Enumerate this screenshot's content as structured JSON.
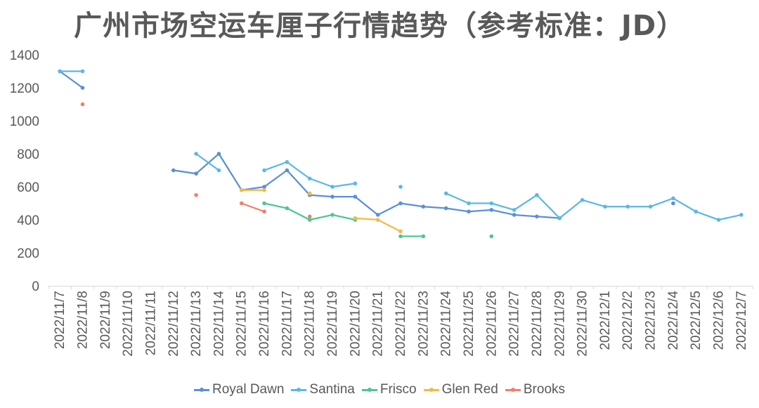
{
  "chart_data": {
    "type": "line",
    "title": "广州市场空运车厘子行情趋势（参考标准：JD）",
    "xlabel": "",
    "ylabel": "",
    "ylim": [
      0,
      1400
    ],
    "yticks": [
      0,
      200,
      400,
      600,
      800,
      1000,
      1200,
      1400
    ],
    "grid": false,
    "legend_position": "bottom",
    "categories": [
      "2022/11/7",
      "2022/11/8",
      "2022/11/9",
      "2022/11/10",
      "2022/11/11",
      "2022/11/12",
      "2022/11/13",
      "2022/11/14",
      "2022/11/15",
      "2022/11/16",
      "2022/11/17",
      "2022/11/18",
      "2022/11/19",
      "2022/11/20",
      "2022/11/21",
      "2022/11/22",
      "2022/11/23",
      "2022/11/24",
      "2022/11/25",
      "2022/11/26",
      "2022/11/27",
      "2022/11/28",
      "2022/11/29",
      "2022/11/30",
      "2022/12/1",
      "2022/12/2",
      "2022/12/3",
      "2022/12/4",
      "2022/12/5",
      "2022/12/6",
      "2022/12/7"
    ],
    "series": [
      {
        "name": "Royal Dawn",
        "color": "#5B8FD9",
        "values": [
          1300,
          1200,
          null,
          null,
          null,
          700,
          680,
          800,
          580,
          600,
          700,
          550,
          540,
          540,
          430,
          500,
          480,
          470,
          450,
          460,
          430,
          420,
          410,
          null,
          null,
          null,
          null,
          500,
          null,
          null,
          null
        ]
      },
      {
        "name": "Santina",
        "color": "#5AB8E5",
        "values": [
          1300,
          1300,
          null,
          null,
          null,
          null,
          800,
          700,
          null,
          700,
          750,
          650,
          600,
          620,
          null,
          600,
          null,
          560,
          500,
          500,
          460,
          550,
          410,
          520,
          480,
          480,
          480,
          530,
          450,
          400,
          430
        ]
      },
      {
        "name": "Frisco",
        "color": "#4CC790",
        "values": [
          null,
          null,
          null,
          null,
          null,
          null,
          null,
          null,
          null,
          500,
          470,
          400,
          430,
          400,
          null,
          300,
          300,
          null,
          null,
          300,
          null,
          null,
          null,
          null,
          null,
          null,
          null,
          null,
          null,
          null,
          null
        ]
      },
      {
        "name": "Glen Red",
        "color": "#F5B94A",
        "values": [
          null,
          null,
          null,
          null,
          null,
          null,
          null,
          null,
          580,
          580,
          null,
          560,
          null,
          410,
          400,
          330,
          null,
          null,
          null,
          null,
          null,
          null,
          null,
          null,
          null,
          null,
          null,
          null,
          null,
          null,
          null
        ]
      },
      {
        "name": "Brooks",
        "color": "#F0806A",
        "values": [
          null,
          1100,
          null,
          null,
          null,
          null,
          550,
          null,
          500,
          450,
          null,
          420,
          null,
          null,
          null,
          null,
          null,
          null,
          null,
          null,
          null,
          null,
          null,
          null,
          null,
          null,
          null,
          null,
          null,
          null,
          null
        ]
      }
    ]
  }
}
